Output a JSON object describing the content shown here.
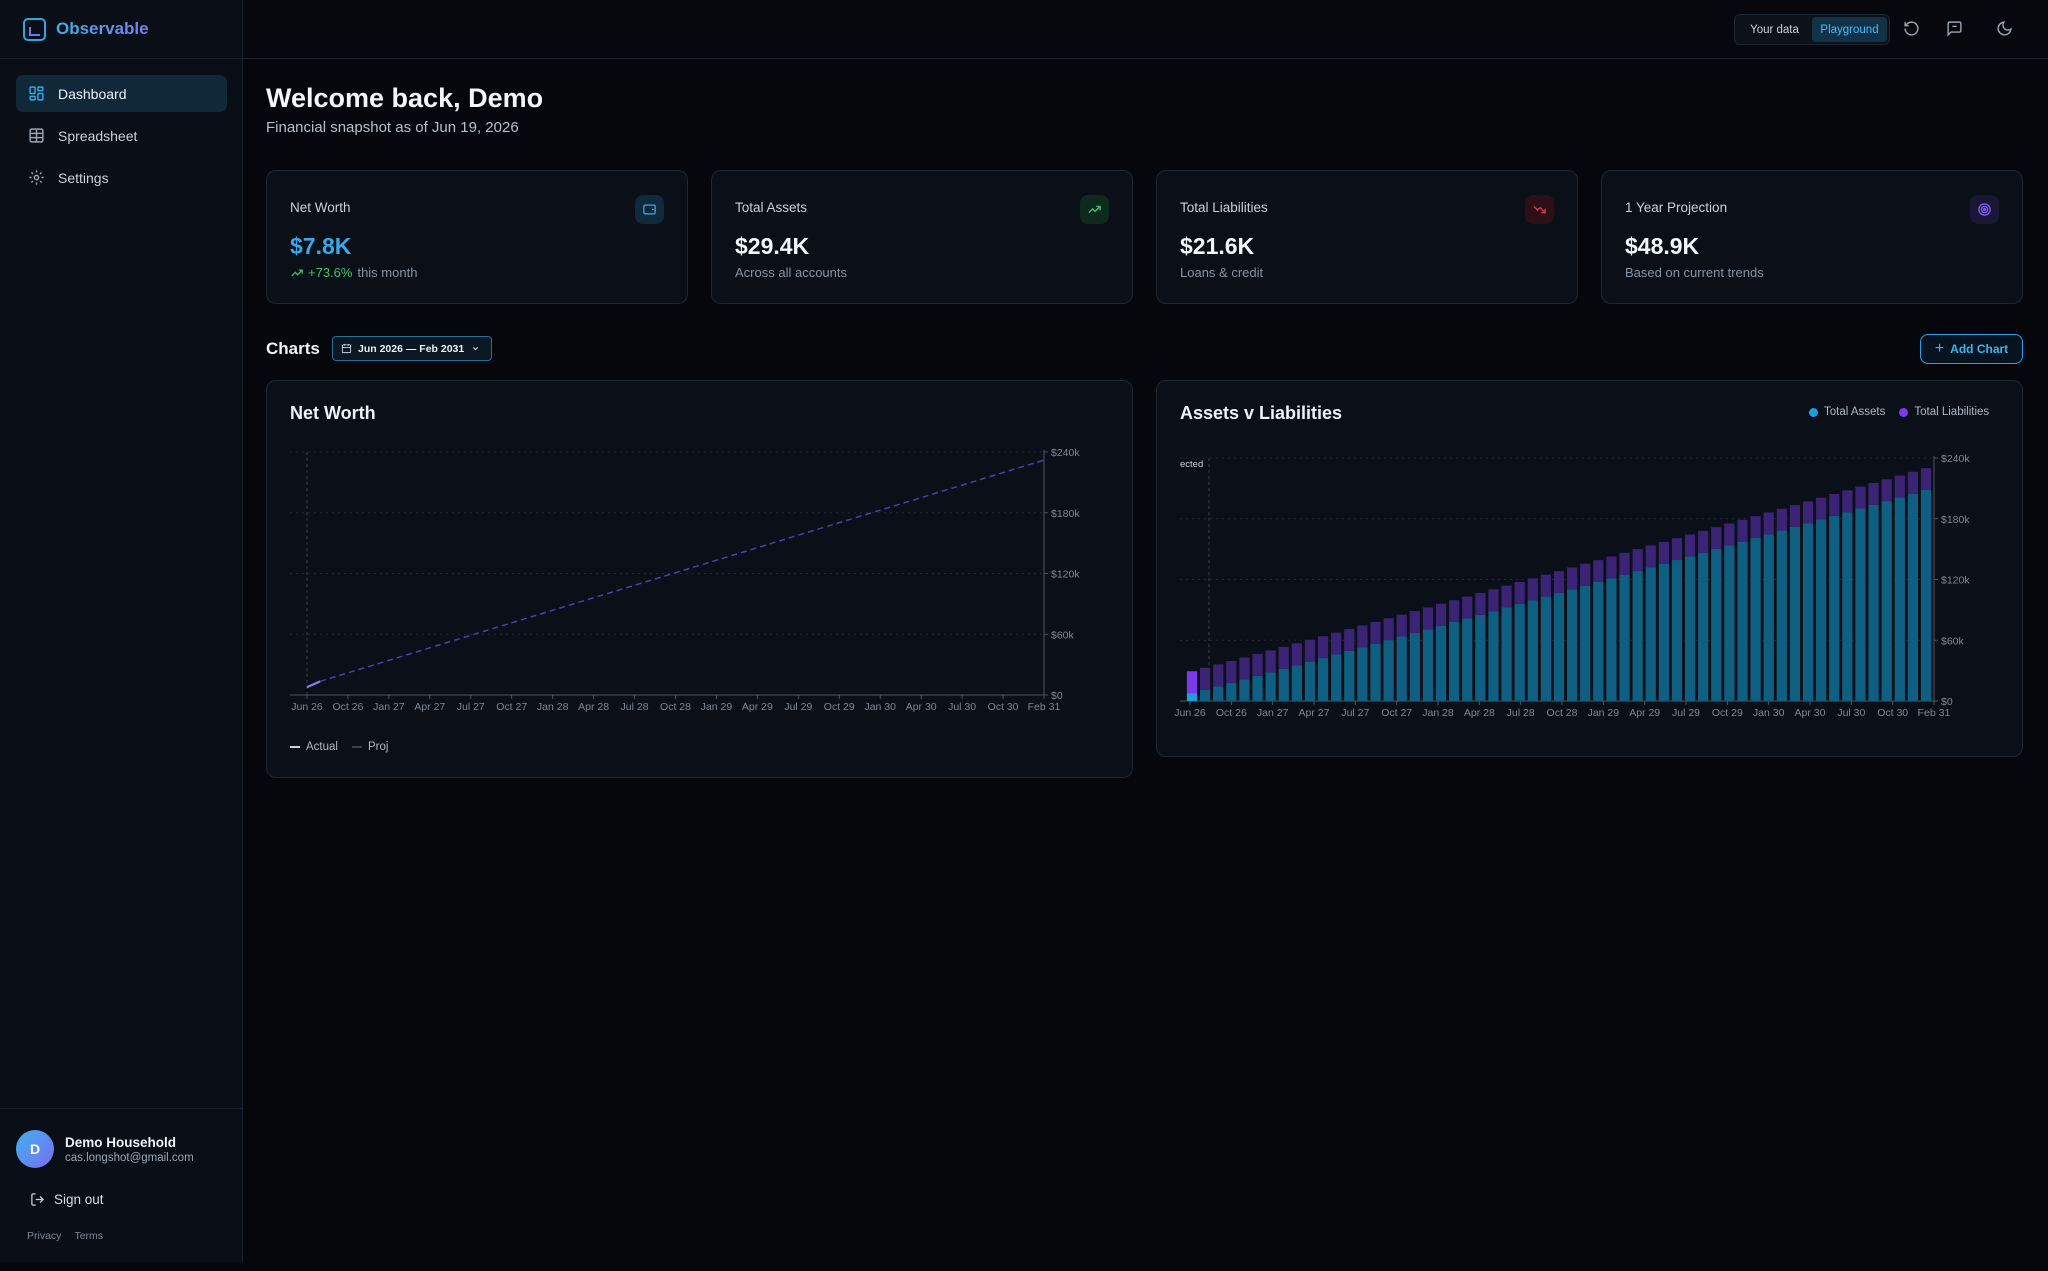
{
  "app": {
    "name": "Observable"
  },
  "sidebar": {
    "items": [
      {
        "label": "Dashboard",
        "icon": "dashboard-icon",
        "active": true
      },
      {
        "label": "Spreadsheet",
        "icon": "table-icon",
        "active": false
      },
      {
        "label": "Settings",
        "icon": "gear-icon",
        "active": false
      }
    ],
    "user": {
      "initial": "D",
      "name": "Demo Household",
      "email": "cas.longshot@gmail.com"
    },
    "signout_label": "Sign out",
    "legal": {
      "privacy": "Privacy",
      "terms": "Terms"
    }
  },
  "topbar": {
    "toggle": [
      {
        "label": "Your data",
        "active": false
      },
      {
        "label": "Playground",
        "active": true
      }
    ],
    "icons": [
      "refresh-icon",
      "feedback-icon",
      "moon-icon"
    ]
  },
  "header": {
    "title": "Welcome back, Demo",
    "subtitle": "Financial snapshot as of Jun 19, 2026"
  },
  "cards": [
    {
      "title": "Net Worth",
      "value": "$7.8K",
      "delta": "+73.6%",
      "note": "this month",
      "icon": "wallet-icon",
      "accent": "#38a9e8"
    },
    {
      "title": "Total Assets",
      "value": "$29.4K",
      "note": "Across all accounts",
      "icon": "trend-up-icon",
      "accent": "#39c46b"
    },
    {
      "title": "Total Liabilities",
      "value": "$21.6K",
      "note": "Loans & credit",
      "icon": "trend-down-icon",
      "accent": "#e0344f"
    },
    {
      "title": "1 Year Projection",
      "value": "$48.9K",
      "note": "Based on current trends",
      "icon": "target-icon",
      "accent": "#7a5cf0"
    }
  ],
  "charts_section": {
    "label": "Charts",
    "range": "Jun 2026 — Feb 2031",
    "add_label": "Add Chart"
  },
  "colors": {
    "assets": "#1aa0dc",
    "liabilities": "#7c3aed",
    "line": "#6c5ce7"
  },
  "chart_data": [
    {
      "type": "line",
      "title": "Net Worth",
      "x_ticks": [
        "Jun 26",
        "Oct 26",
        "Jan 27",
        "Apr 27",
        "Jul 27",
        "Oct 27",
        "Jan 28",
        "Apr 28",
        "Jul 28",
        "Oct 28",
        "Jan 29",
        "Apr 29",
        "Jul 29",
        "Oct 29",
        "Jan 30",
        "Apr 30",
        "Jul 30",
        "Oct 30",
        "Feb 31"
      ],
      "y_ticks": [
        "$0",
        "$60k",
        "$120k",
        "$180k",
        "$240k"
      ],
      "ylim": [
        0,
        240000
      ],
      "x_range_months": [
        0,
        56
      ],
      "series": [
        {
          "name": "Actual",
          "style": "solid",
          "x": [
            0,
            1
          ],
          "y": [
            7800,
            13500
          ]
        },
        {
          "name": "Proj",
          "style": "dashed",
          "x": [
            1,
            56
          ],
          "y": [
            13500,
            232000
          ]
        }
      ]
    },
    {
      "type": "bar",
      "title": "Assets v Liabilities",
      "x_ticks": [
        "Jun 26",
        "Oct 26",
        "Jan 27",
        "Apr 27",
        "Jul 27",
        "Oct 27",
        "Jan 28",
        "Apr 28",
        "Jul 28",
        "Oct 28",
        "Jan 29",
        "Apr 29",
        "Jul 29",
        "Oct 29",
        "Jan 30",
        "Apr 30",
        "Jul 30",
        "Oct 30",
        "Feb 31"
      ],
      "y_ticks": [
        "$0",
        "$60k",
        "$120k",
        "$180k",
        "$240k"
      ],
      "ylim": [
        0,
        240000
      ],
      "annotation": "ected",
      "legend": [
        "Total Assets",
        "Total Liabilities"
      ],
      "bar_count": 57,
      "assets_range": [
        29400,
        230000
      ],
      "liabilities": 21600
    }
  ]
}
